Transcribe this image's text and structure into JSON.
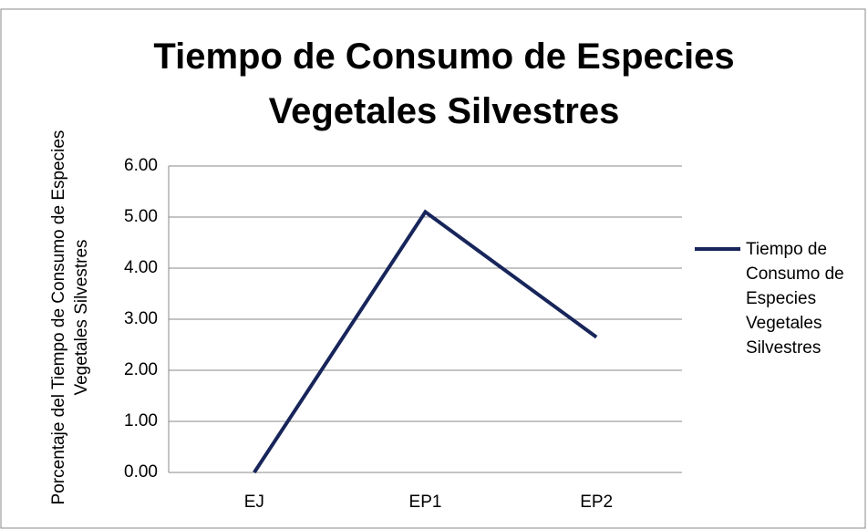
{
  "chart_data": {
    "type": "line",
    "title": "Tiempo de Consumo de Especies Vegetales Silvestres",
    "y_axis_label": "Porcentaje del Tiempo de Consumo de Especies Vegetales Silvestres",
    "categories": [
      "EJ",
      "EP1",
      "EP2"
    ],
    "series": [
      {
        "name": "Tiempo de Consumo de Especies Vegetales Silvestres",
        "color": "#17255a",
        "values": [
          0,
          5.1,
          2.65
        ]
      }
    ],
    "ylim": [
      0,
      6
    ],
    "yticks": [
      {
        "value": 0,
        "label": "0.00"
      },
      {
        "value": 1,
        "label": "1.00"
      },
      {
        "value": 2,
        "label": "2.00"
      },
      {
        "value": 3,
        "label": "3.00"
      },
      {
        "value": 4,
        "label": "4.00"
      },
      {
        "value": 5,
        "label": "5.00"
      },
      {
        "value": 6,
        "label": "6.00"
      }
    ],
    "grid": true,
    "legend": "right"
  }
}
